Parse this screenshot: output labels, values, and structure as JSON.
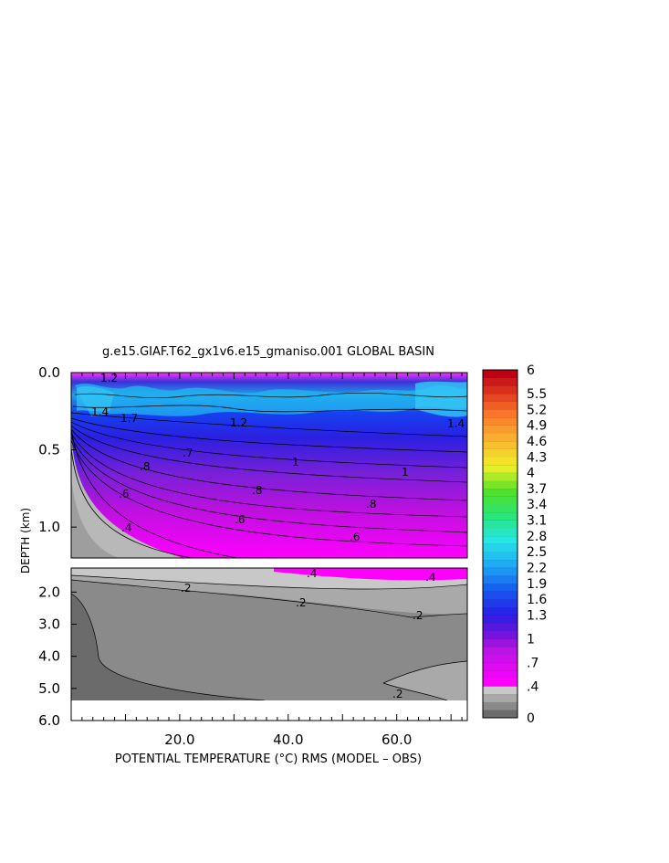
{
  "chart_data": {
    "type": "contour",
    "title": "g.e15.GIAF.T62_gx1v6.e15_gmaniso.001 GLOBAL BASIN",
    "xlabel": "POTENTIAL TEMPERATURE (°C) RMS (MODEL – OBS)",
    "ylabel": "DEPTH (km)",
    "xlim": [
      0,
      73
    ],
    "x_ticks": [
      20,
      40,
      60
    ],
    "x_tick_labels": [
      "20.0",
      "40.0",
      "60.0"
    ],
    "upper_panel": {
      "ylim": [
        0,
        1.2
      ],
      "y_ticks": [
        0.0,
        0.5,
        1.0
      ],
      "y_tick_labels": [
        "0.0",
        "0.5",
        "1.0"
      ]
    },
    "lower_panel": {
      "ylim": [
        1.25,
        6.0
      ],
      "y_ticks": [
        2.0,
        3.0,
        4.0,
        5.0,
        6.0
      ],
      "y_tick_labels": [
        "2.0",
        "3.0",
        "4.0",
        "5.0",
        "6.0"
      ]
    },
    "contour_labels_upper": [
      ".4",
      ".6",
      ".6",
      ".6",
      ".7",
      ".8",
      ".8",
      ".8",
      "1",
      "1",
      "1.2",
      "1.4",
      "1.4",
      "1.7",
      "1.2"
    ],
    "contour_labels_lower": [
      ".4",
      ".4",
      ".2",
      ".2",
      ".2",
      ".2"
    ],
    "colorbar": {
      "levels": [
        0,
        0.1,
        0.2,
        0.3,
        0.4,
        0.5,
        0.6,
        0.7,
        0.8,
        0.9,
        1.0,
        1.1,
        1.2,
        1.3,
        1.45,
        1.6,
        1.75,
        1.9,
        2.05,
        2.2,
        2.35,
        2.5,
        2.65,
        2.8,
        2.95,
        3.1,
        3.25,
        3.4,
        3.55,
        3.7,
        3.85,
        4.0,
        4.15,
        4.3,
        4.45,
        4.6,
        4.75,
        4.9,
        5.05,
        5.2,
        5.35,
        5.5,
        5.65,
        5.8,
        6.0
      ],
      "tick_labels": [
        "0",
        ".4",
        ".7",
        "1",
        "1.3",
        "1.6",
        "1.9",
        "2.2",
        "2.5",
        "2.8",
        "3.1",
        "3.4",
        "3.7",
        "4",
        "4.3",
        "4.6",
        "4.9",
        "5.2",
        "5.5",
        "6"
      ],
      "tick_values": [
        0,
        0.4,
        0.7,
        1.0,
        1.3,
        1.6,
        1.9,
        2.2,
        2.5,
        2.8,
        3.1,
        3.4,
        3.7,
        4.0,
        4.3,
        4.6,
        4.9,
        5.2,
        5.5,
        6.0
      ]
    }
  }
}
